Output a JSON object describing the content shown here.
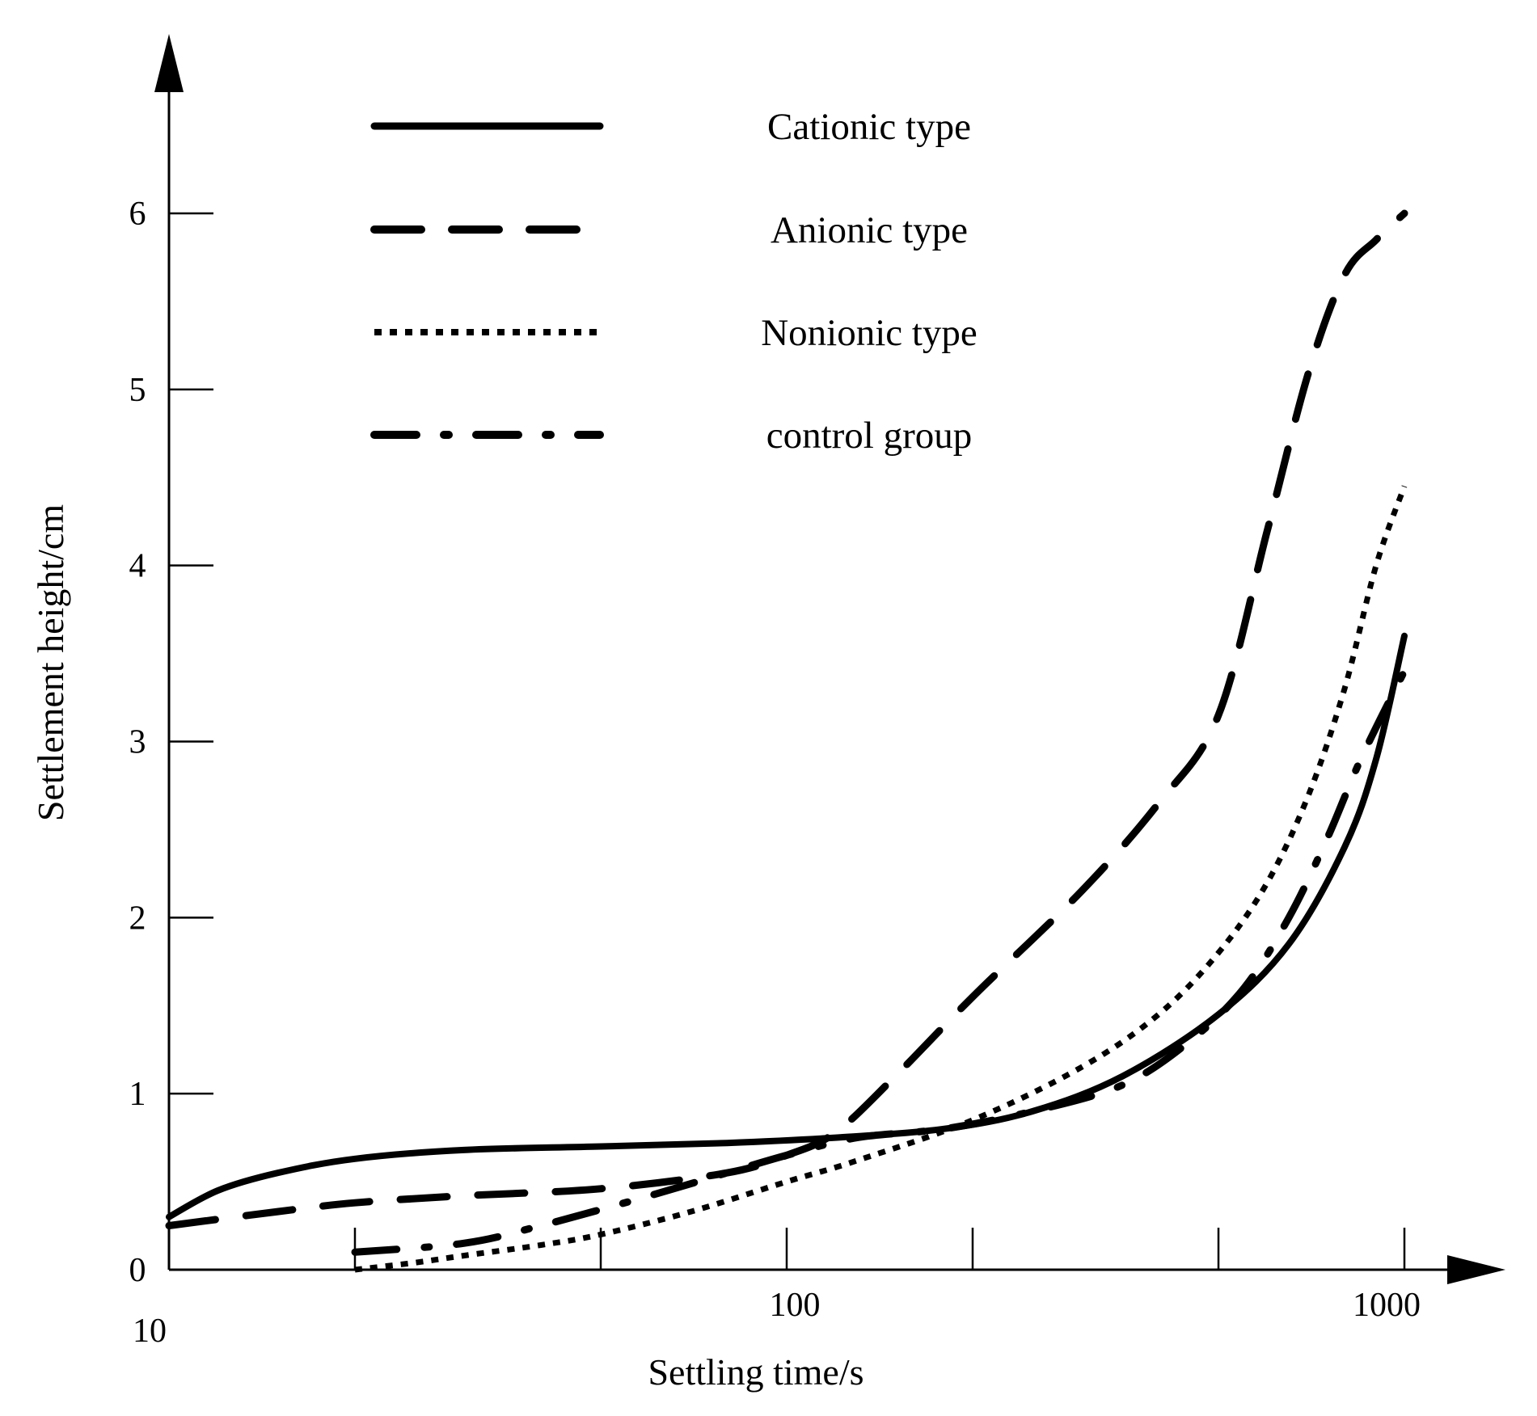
{
  "chart_data": {
    "type": "line",
    "xlabel": "Settling time/s",
    "ylabel": "Settlement height/cm",
    "x_scale": "log",
    "xlim": [
      10,
      1000
    ],
    "ylim": [
      0,
      6
    ],
    "x_tick_labels": [
      "10",
      "100",
      "1000"
    ],
    "y_tick_labels": [
      "0",
      "1",
      "2",
      "3",
      "4",
      "5",
      "6"
    ],
    "grid": false,
    "legend_position": "top-left",
    "series": [
      {
        "name": "Cationic type",
        "style": "solid",
        "x": [
          10,
          12,
          15,
          20,
          30,
          50,
          80,
          120,
          180,
          250,
          350,
          500,
          650,
          800,
          900,
          1000
        ],
        "y": [
          0.3,
          0.45,
          0.55,
          0.63,
          0.68,
          0.7,
          0.72,
          0.75,
          0.8,
          0.9,
          1.1,
          1.45,
          1.85,
          2.4,
          2.9,
          3.6
        ]
      },
      {
        "name": "Anionic type",
        "style": "dashed",
        "x": [
          10,
          15,
          20,
          30,
          50,
          80,
          100,
          120,
          150,
          200,
          300,
          400,
          500,
          600,
          700,
          800,
          900,
          1000
        ],
        "y": [
          0.25,
          0.33,
          0.38,
          0.42,
          0.46,
          0.55,
          0.65,
          0.78,
          1.1,
          1.55,
          2.15,
          2.65,
          3.15,
          4.2,
          5.1,
          5.65,
          5.85,
          6.0
        ]
      },
      {
        "name": "Nonionic type",
        "style": "dotted",
        "x": [
          20,
          25,
          30,
          40,
          50,
          70,
          100,
          130,
          200,
          300,
          400,
          500,
          600,
          700,
          800,
          900,
          1000
        ],
        "y": [
          0.0,
          0.04,
          0.08,
          0.14,
          0.2,
          0.33,
          0.5,
          0.62,
          0.85,
          1.15,
          1.45,
          1.8,
          2.2,
          2.7,
          3.3,
          4.0,
          4.45
        ]
      },
      {
        "name": "control group",
        "style": "dash-dot",
        "x": [
          20,
          30,
          40,
          60,
          80,
          100,
          130,
          180,
          250,
          350,
          450,
          550,
          650,
          750,
          850,
          1000
        ],
        "y": [
          0.1,
          0.15,
          0.25,
          0.42,
          0.55,
          0.65,
          0.75,
          0.8,
          0.9,
          1.05,
          1.3,
          1.6,
          2.0,
          2.45,
          2.9,
          3.4
        ]
      }
    ]
  }
}
